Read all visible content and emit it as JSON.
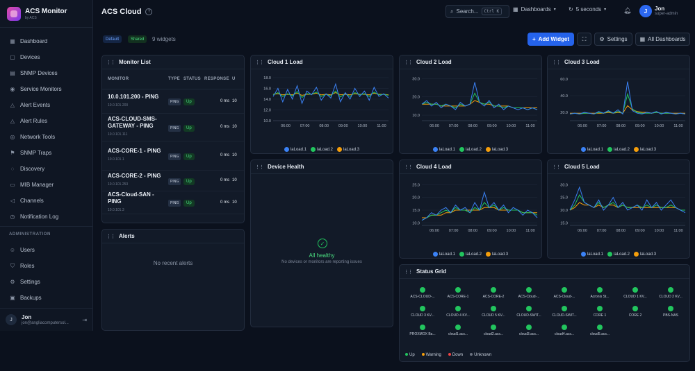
{
  "brand": {
    "title": "ACS Monitor",
    "sub": "by ACS"
  },
  "sidebar": {
    "items": [
      {
        "label": "Dashboard",
        "icon": "grid-icon"
      },
      {
        "label": "Devices",
        "icon": "box-icon"
      },
      {
        "label": "SNMP Devices",
        "icon": "server-icon"
      },
      {
        "label": "Service Monitors",
        "icon": "signal-icon"
      },
      {
        "label": "Alert Events",
        "icon": "bell-icon"
      },
      {
        "label": "Alert Rules",
        "icon": "bell-icon"
      },
      {
        "label": "Network Tools",
        "icon": "globe-icon"
      },
      {
        "label": "SNMP Traps",
        "icon": "flag-icon"
      },
      {
        "label": "Discovery",
        "icon": "compass-icon"
      },
      {
        "label": "MIB Manager",
        "icon": "doc-icon"
      },
      {
        "label": "Channels",
        "icon": "megaphone-icon"
      },
      {
        "label": "Notification Log",
        "icon": "clock-icon"
      }
    ],
    "admin_section": "ADMINISTRATION",
    "admin_items": [
      {
        "label": "Users",
        "icon": "users-icon"
      },
      {
        "label": "Roles",
        "icon": "shield-icon"
      },
      {
        "label": "Settings",
        "icon": "gear-icon"
      },
      {
        "label": "Backups",
        "icon": "archive-icon"
      }
    ],
    "user": {
      "initial": "J",
      "name": "Jon",
      "email": "jon@angliacomputersol..."
    }
  },
  "header": {
    "title": "ACS Cloud",
    "search_label": "Search...",
    "search_kbd": "Ctrl K",
    "dashboards_label": "Dashboards",
    "refresh_label": "5 seconds",
    "user": {
      "initial": "J",
      "name": "Jon",
      "role": "super-admin"
    }
  },
  "toolbar": {
    "badge_default": "Default",
    "badge_shared": "Shared",
    "widget_count": "9 widgets",
    "add_widget": "Add Widget",
    "settings": "Settings",
    "all_dashboards": "All Dashboards"
  },
  "monitor_list": {
    "title": "Monitor List",
    "columns": [
      "MONITOR",
      "TYPE",
      "STATUS",
      "RESPONSE",
      "U"
    ],
    "rows": [
      {
        "name": "10.0.101.200 - PING",
        "ip": "10.0.101.200",
        "type": "PING",
        "status": "Up",
        "response": "0 ms",
        "uptime": "10"
      },
      {
        "name": "ACS-CLOUD-SMS-GATEWAY - PING",
        "ip": "10.0.101.111",
        "type": "PING",
        "status": "Up",
        "response": "0 ms",
        "uptime": "10"
      },
      {
        "name": "ACS-CORE-1 - PING",
        "ip": "10.0.101.1",
        "type": "PING",
        "status": "Up",
        "response": "0 ms",
        "uptime": "10"
      },
      {
        "name": "ACS-CORE-2 - PING",
        "ip": "10.0.101.253",
        "type": "PING",
        "status": "Up",
        "response": "0 ms",
        "uptime": "10"
      },
      {
        "name": "ACS-Cloud-SAN - PING",
        "ip": "10.0.101.3",
        "type": "PING",
        "status": "Up",
        "response": "0 ms",
        "uptime": "10"
      }
    ]
  },
  "alerts": {
    "title": "Alerts",
    "empty": "No recent alerts"
  },
  "device_health": {
    "title": "Device Health",
    "status": "All healthy",
    "detail": "No devices or monitors are reporting issues"
  },
  "status_grid": {
    "title": "Status Grid",
    "items": [
      "ACS-CLOUD-...",
      "ACS-CORE-1",
      "ACS-CORE-2",
      "ACS-Cloud-...",
      "ACS-Cloud-...",
      "Acronis St...",
      "CLOUD 1 KV...",
      "CLOUD 2 KV...",
      "CLOUD 3 KV...",
      "CLOUD 4 KV...",
      "CLOUD 5 KV...",
      "CLOUD-SWIT...",
      "CLOUD-SWIT...",
      "CORE 1",
      "CORE 2",
      "PBS-NAS",
      "PROXMOX Ba...",
      "cloud1.acs...",
      "cloud2.acs...",
      "cloud3.acs...",
      "cloud4.acs...",
      "cloud5.acs..."
    ],
    "legend": [
      {
        "label": "Up",
        "color": "#22c55e"
      },
      {
        "label": "Warning",
        "color": "#f59e0b"
      },
      {
        "label": "Down",
        "color": "#ef4444"
      },
      {
        "label": "Unknown",
        "color": "#6b7280"
      }
    ]
  },
  "colors": {
    "series": [
      "#3b82f6",
      "#22c55e",
      "#f59e0b"
    ],
    "accent": "#2563eb"
  },
  "chart_data": [
    {
      "type": "line",
      "title": "Cloud 1 Load",
      "x_ticks": [
        "06:00",
        "07:00",
        "08:00",
        "09:00",
        "10:00",
        "11:00"
      ],
      "y_ticks": [
        10.0,
        12.0,
        14.0,
        16.0,
        18.0
      ],
      "ylim": [
        10,
        18.5
      ],
      "series": [
        {
          "name": "laLoad.1",
          "values": [
            14.5,
            16.0,
            13.5,
            15.8,
            14.0,
            16.5,
            13.2,
            15.5,
            14.8,
            16.2,
            13.8,
            15.0,
            14.2,
            16.8,
            13.5,
            15.2,
            14.0,
            16.0,
            14.5,
            15.5,
            13.8,
            16.2,
            14.5,
            15.0,
            14.2
          ]
        },
        {
          "name": "laLoad.2",
          "values": [
            14.8,
            15.2,
            14.5,
            15.0,
            14.6,
            15.4,
            14.3,
            15.0,
            14.9,
            15.3,
            14.5,
            14.9,
            14.6,
            15.5,
            14.4,
            15.0,
            14.5,
            15.2,
            14.8,
            15.0,
            14.5,
            15.3,
            14.8,
            14.9,
            14.7
          ]
        },
        {
          "name": "laLoad.3",
          "values": [
            14.9,
            15.0,
            14.8,
            14.9,
            14.8,
            15.1,
            14.7,
            14.9,
            14.9,
            15.1,
            14.8,
            14.9,
            14.8,
            15.2,
            14.8,
            14.9,
            14.8,
            15.0,
            14.9,
            14.9,
            14.8,
            15.1,
            14.9,
            14.9,
            14.8
          ]
        }
      ]
    },
    {
      "type": "line",
      "title": "Cloud 2 Load",
      "x_ticks": [
        "06:00",
        "07:00",
        "08:00",
        "09:00",
        "10:00",
        "11:00"
      ],
      "y_ticks": [
        10.0,
        20.0,
        30.0
      ],
      "ylim": [
        7,
        32
      ],
      "series": [
        {
          "name": "laLoad.1",
          "values": [
            16,
            18,
            15,
            17,
            14,
            16,
            15,
            13,
            17,
            15,
            16,
            28,
            17,
            15,
            18,
            14,
            16,
            13,
            15,
            14,
            13,
            14,
            13,
            14,
            13
          ]
        },
        {
          "name": "laLoad.2",
          "values": [
            16,
            17,
            16,
            16,
            15,
            16,
            15,
            14,
            16,
            15,
            16,
            22,
            17,
            16,
            17,
            15,
            15,
            14,
            15,
            14,
            14,
            14,
            13,
            14,
            13
          ]
        },
        {
          "name": "laLoad.3",
          "values": [
            16,
            16,
            16,
            16,
            15,
            15,
            15,
            15,
            15,
            15,
            16,
            18,
            17,
            16,
            16,
            15,
            15,
            15,
            15,
            14,
            14,
            14,
            14,
            14,
            14
          ]
        }
      ]
    },
    {
      "type": "line",
      "title": "Cloud 3 Load",
      "x_ticks": [
        "06:00",
        "07:00",
        "08:00",
        "09:00",
        "10:00",
        "11:00"
      ],
      "y_ticks": [
        20.0,
        40.0,
        60.0
      ],
      "ylim": [
        10,
        65
      ],
      "series": [
        {
          "name": "laLoad.1",
          "values": [
            18,
            19,
            18,
            20,
            19,
            18,
            21,
            19,
            22,
            19,
            23,
            18,
            57,
            22,
            19,
            18,
            20,
            19,
            21,
            18,
            20,
            19,
            18,
            19,
            18
          ]
        },
        {
          "name": "laLoad.2",
          "values": [
            18,
            19,
            18,
            19,
            19,
            18,
            20,
            19,
            21,
            19,
            21,
            19,
            42,
            24,
            20,
            19,
            19,
            19,
            20,
            19,
            19,
            19,
            18,
            19,
            18
          ]
        },
        {
          "name": "laLoad.3",
          "values": [
            19,
            19,
            19,
            19,
            19,
            19,
            19,
            19,
            20,
            19,
            20,
            19,
            28,
            23,
            21,
            20,
            20,
            19,
            20,
            19,
            19,
            19,
            19,
            19,
            19
          ]
        }
      ]
    },
    {
      "type": "line",
      "title": "Cloud 4 Load",
      "x_ticks": [
        "06:00",
        "07:00",
        "08:00",
        "09:00",
        "10:00",
        "11:00"
      ],
      "y_ticks": [
        10.0,
        15.0,
        20.0,
        25.0
      ],
      "ylim": [
        9,
        27
      ],
      "series": [
        {
          "name": "laLoad.1",
          "values": [
            11,
            12,
            14,
            13,
            15,
            16,
            14,
            17,
            15,
            16,
            14,
            18,
            15,
            22,
            16,
            18,
            15,
            17,
            14,
            16,
            15,
            13,
            15,
            14,
            12
          ]
        },
        {
          "name": "laLoad.2",
          "values": [
            11,
            12,
            13,
            13,
            14,
            15,
            14,
            16,
            15,
            15,
            14,
            16,
            15,
            18,
            16,
            17,
            15,
            16,
            15,
            15,
            15,
            14,
            14,
            14,
            13
          ]
        },
        {
          "name": "laLoad.3",
          "values": [
            12,
            12,
            13,
            13,
            13,
            14,
            14,
            15,
            15,
            15,
            15,
            15,
            15,
            16,
            16,
            16,
            15,
            15,
            15,
            15,
            15,
            14,
            14,
            14,
            14
          ]
        }
      ]
    },
    {
      "type": "line",
      "title": "Cloud 5 Load",
      "x_ticks": [
        "06:00",
        "07:00",
        "08:00",
        "09:00",
        "10:00",
        "11:00"
      ],
      "y_ticks": [
        15.0,
        20.0,
        25.0,
        30.0
      ],
      "ylim": [
        14,
        32
      ],
      "series": [
        {
          "name": "laLoad.1",
          "values": [
            20,
            24,
            29,
            23,
            22,
            21,
            24,
            20,
            22,
            25,
            21,
            23,
            20,
            21,
            22,
            20,
            24,
            21,
            23,
            20,
            22,
            24,
            21,
            20,
            19
          ]
        },
        {
          "name": "laLoad.2",
          "values": [
            20,
            22,
            26,
            23,
            22,
            21,
            23,
            21,
            22,
            23,
            21,
            22,
            21,
            21,
            22,
            21,
            22,
            21,
            22,
            21,
            21,
            22,
            21,
            20,
            20
          ]
        },
        {
          "name": "laLoad.3",
          "values": [
            20,
            21,
            23,
            22,
            22,
            21,
            22,
            21,
            22,
            22,
            21,
            22,
            21,
            21,
            21,
            21,
            21,
            21,
            21,
            21,
            21,
            21,
            21,
            20,
            20
          ]
        }
      ]
    }
  ]
}
